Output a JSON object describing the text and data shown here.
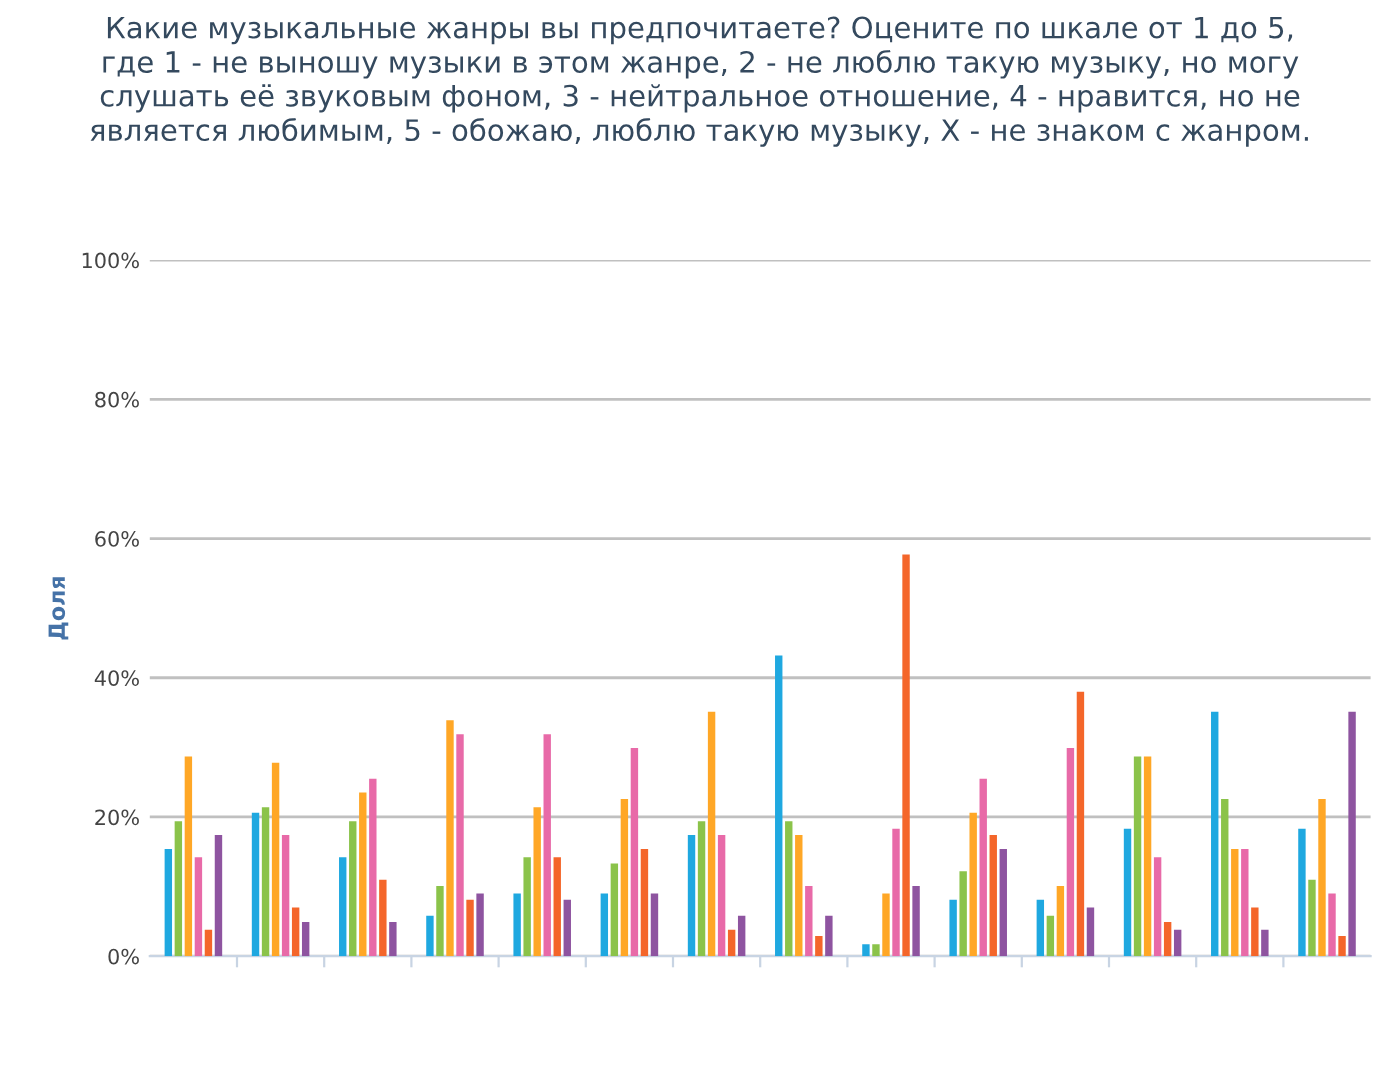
{
  "chart_data": {
    "type": "bar",
    "title": "Какие музыкальные жанры вы предпочитаете? Оцените по шкале от 1 до 5,\nгде 1 - не выношу музыки в этом жанре, 2 - не люблю такую музыку, но могу\nслушать её звуковым фоном, 3 - нейтральное отношение, 4 - нравится, но не\nявляется любимым, 5 - обожаю, люблю такую музыку, X - не знаком с жанром.",
    "ylabel": "Доля",
    "categories": [
      null,
      null,
      null,
      null,
      null,
      null,
      null,
      null,
      null,
      null,
      null,
      null,
      null,
      null
    ],
    "series": [
      {
        "color": "#1fa8e0",
        "values": [
          15.4,
          20.6,
          14.2,
          5.8,
          9.0,
          9.0,
          17.4,
          43.2,
          1.7,
          8.1,
          8.1,
          18.3,
          35.1,
          18.3
        ]
      },
      {
        "color": "#8bc34a",
        "values": [
          19.4,
          21.4,
          19.4,
          10.1,
          14.2,
          13.3,
          19.4,
          19.4,
          1.7,
          12.2,
          5.8,
          28.7,
          22.6,
          11.0
        ]
      },
      {
        "color": "#ffa726",
        "values": [
          28.7,
          27.8,
          23.5,
          33.9,
          21.4,
          22.6,
          35.1,
          17.4,
          9.0,
          20.6,
          10.1,
          28.7,
          15.4,
          22.6
        ]
      },
      {
        "color": "#e86aa8",
        "values": [
          14.2,
          17.4,
          25.5,
          31.9,
          31.9,
          29.9,
          17.4,
          10.1,
          18.3,
          25.5,
          29.9,
          14.2,
          15.4,
          9.0
        ]
      },
      {
        "color": "#f4662a",
        "values": [
          3.8,
          7.0,
          11.0,
          8.1,
          14.2,
          15.4,
          3.8,
          2.9,
          57.7,
          17.4,
          38.0,
          4.9,
          7.0,
          2.9
        ]
      },
      {
        "color": "#8e54a0",
        "values": [
          17.4,
          4.9,
          4.9,
          9.0,
          8.1,
          9.0,
          5.8,
          5.8,
          10.1,
          15.4,
          7.0,
          3.8,
          3.8,
          35.1
        ]
      }
    ],
    "ylim": [
      0,
      100
    ],
    "yticks": [
      {
        "value": 0,
        "label": "0%"
      },
      {
        "value": 20,
        "label": "20%"
      },
      {
        "value": 40,
        "label": "40%"
      },
      {
        "value": 60,
        "label": "60%"
      },
      {
        "value": 80,
        "label": "80%"
      },
      {
        "value": 100,
        "label": "100%"
      }
    ],
    "grid": "y",
    "tick_labels": "y"
  }
}
